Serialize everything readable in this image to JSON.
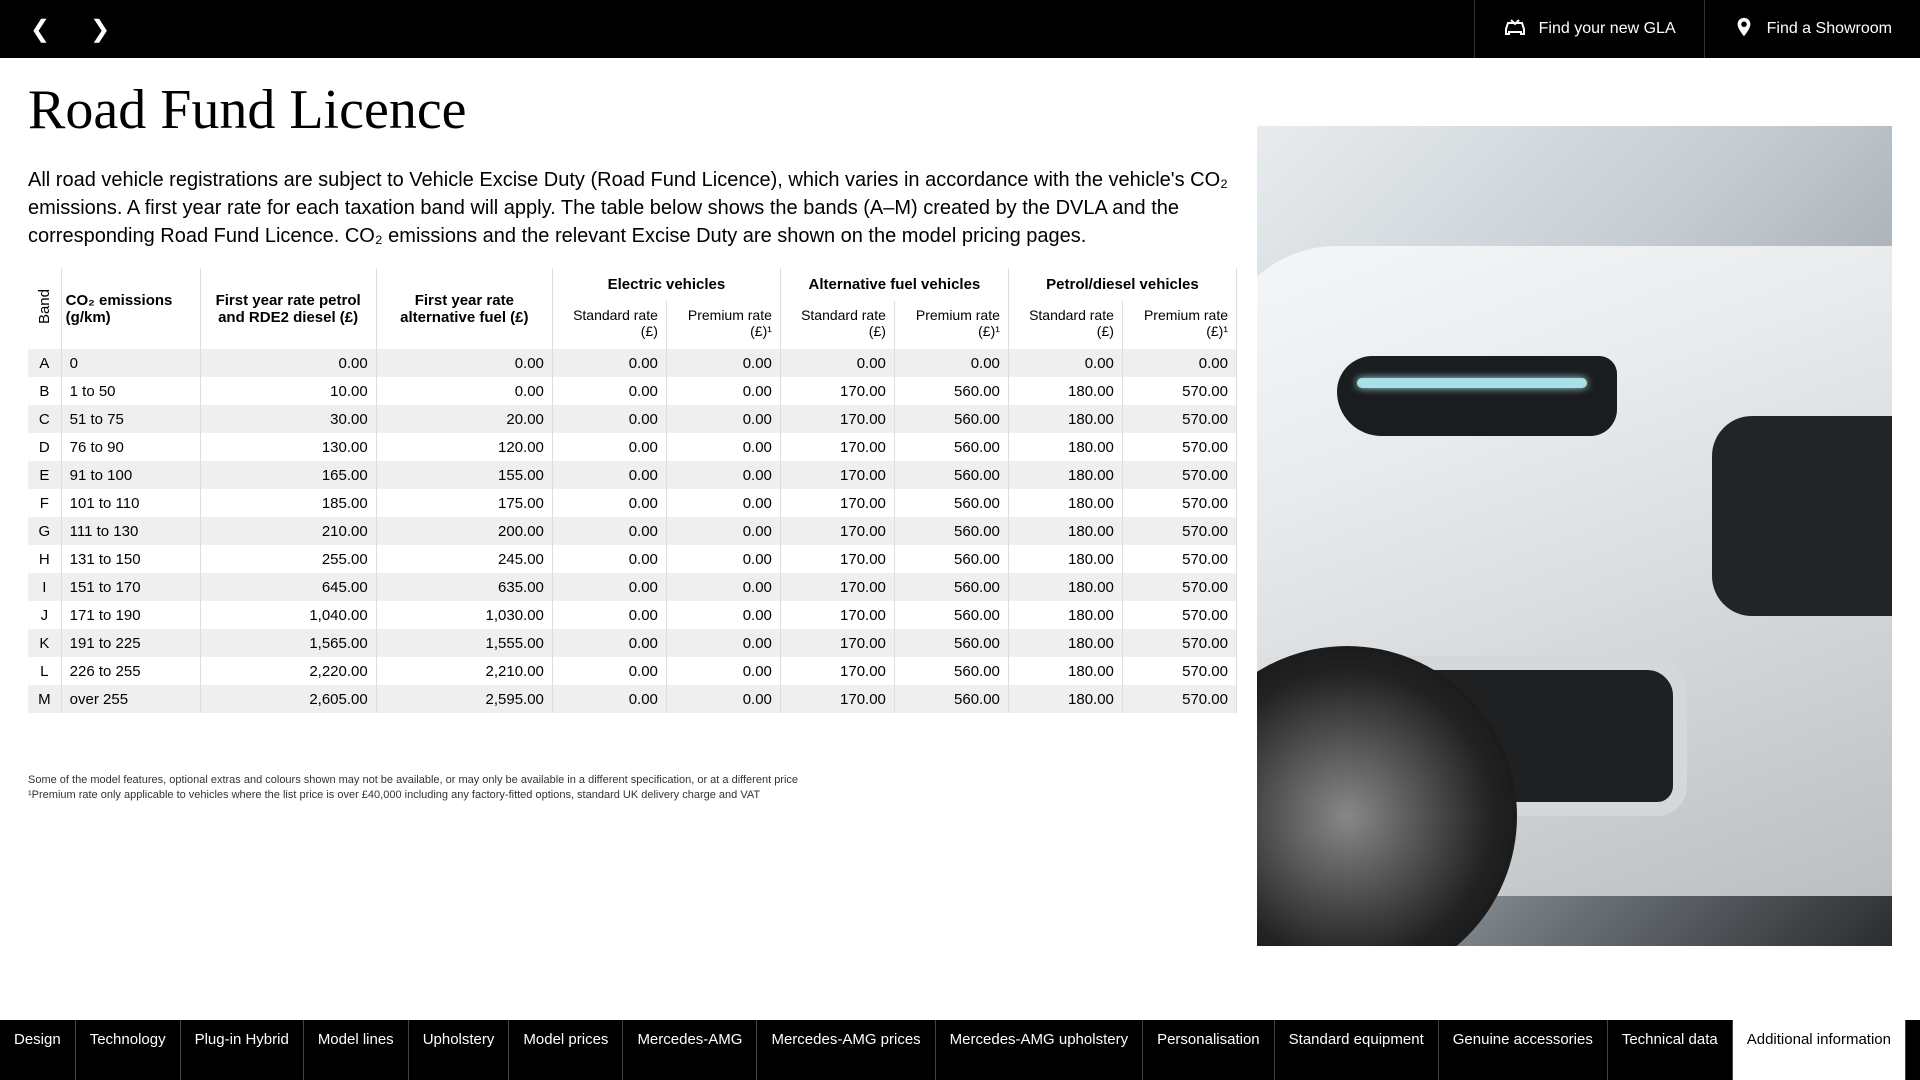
{
  "topbar": {
    "find_car": "Find your new GLA",
    "find_showroom": "Find a Showroom"
  },
  "title": "Road Fund Licence",
  "intro": "All road vehicle registrations are subject to Vehicle Excise Duty (Road Fund Licence), which varies in accordance with the vehicle's CO₂ emissions. A first year rate for each taxation band will apply. The table below shows the bands (A–M) created by the DVLA and the corresponding Road Fund Licence. CO₂ emissions and the relevant Excise Duty are shown on the model pricing pages.",
  "table": {
    "group_headers": {
      "electric": "Electric vehicles",
      "alternative": "Alternative fuel vehicles",
      "petrol": "Petrol/diesel vehicles"
    },
    "columns": {
      "band": "Band",
      "emissions": "CO₂ emissions (g/km)",
      "first_petrol": "First year rate petrol and RDE2 diesel (£)",
      "first_alt": "First year rate alternative fuel (£)",
      "standard": "Standard rate (£)",
      "premium": "Premium rate (£)¹"
    },
    "rows": [
      {
        "band": "A",
        "em": "0",
        "fp": "0.00",
        "fa": "0.00",
        "es": "0.00",
        "ep": "0.00",
        "as": "0.00",
        "ap": "0.00",
        "ps": "0.00",
        "pp": "0.00"
      },
      {
        "band": "B",
        "em": "1 to 50",
        "fp": "10.00",
        "fa": "0.00",
        "es": "0.00",
        "ep": "0.00",
        "as": "170.00",
        "ap": "560.00",
        "ps": "180.00",
        "pp": "570.00"
      },
      {
        "band": "C",
        "em": "51 to 75",
        "fp": "30.00",
        "fa": "20.00",
        "es": "0.00",
        "ep": "0.00",
        "as": "170.00",
        "ap": "560.00",
        "ps": "180.00",
        "pp": "570.00"
      },
      {
        "band": "D",
        "em": "76 to 90",
        "fp": "130.00",
        "fa": "120.00",
        "es": "0.00",
        "ep": "0.00",
        "as": "170.00",
        "ap": "560.00",
        "ps": "180.00",
        "pp": "570.00"
      },
      {
        "band": "E",
        "em": "91 to 100",
        "fp": "165.00",
        "fa": "155.00",
        "es": "0.00",
        "ep": "0.00",
        "as": "170.00",
        "ap": "560.00",
        "ps": "180.00",
        "pp": "570.00"
      },
      {
        "band": "F",
        "em": "101 to 110",
        "fp": "185.00",
        "fa": "175.00",
        "es": "0.00",
        "ep": "0.00",
        "as": "170.00",
        "ap": "560.00",
        "ps": "180.00",
        "pp": "570.00"
      },
      {
        "band": "G",
        "em": "111 to 130",
        "fp": "210.00",
        "fa": "200.00",
        "es": "0.00",
        "ep": "0.00",
        "as": "170.00",
        "ap": "560.00",
        "ps": "180.00",
        "pp": "570.00"
      },
      {
        "band": "H",
        "em": "131 to 150",
        "fp": "255.00",
        "fa": "245.00",
        "es": "0.00",
        "ep": "0.00",
        "as": "170.00",
        "ap": "560.00",
        "ps": "180.00",
        "pp": "570.00"
      },
      {
        "band": "I",
        "em": "151 to 170",
        "fp": "645.00",
        "fa": "635.00",
        "es": "0.00",
        "ep": "0.00",
        "as": "170.00",
        "ap": "560.00",
        "ps": "180.00",
        "pp": "570.00"
      },
      {
        "band": "J",
        "em": "171 to 190",
        "fp": "1,040.00",
        "fa": "1,030.00",
        "es": "0.00",
        "ep": "0.00",
        "as": "170.00",
        "ap": "560.00",
        "ps": "180.00",
        "pp": "570.00"
      },
      {
        "band": "K",
        "em": "191 to 225",
        "fp": "1,565.00",
        "fa": "1,555.00",
        "es": "0.00",
        "ep": "0.00",
        "as": "170.00",
        "ap": "560.00",
        "ps": "180.00",
        "pp": "570.00"
      },
      {
        "band": "L",
        "em": "226 to 255",
        "fp": "2,220.00",
        "fa": "2,210.00",
        "es": "0.00",
        "ep": "0.00",
        "as": "170.00",
        "ap": "560.00",
        "ps": "180.00",
        "pp": "570.00"
      },
      {
        "band": "M",
        "em": "over 255",
        "fp": "2,605.00",
        "fa": "2,595.00",
        "es": "0.00",
        "ep": "0.00",
        "as": "170.00",
        "ap": "560.00",
        "ps": "180.00",
        "pp": "570.00"
      }
    ]
  },
  "footnotes": {
    "line1": "Some of the model features, optional extras and colours shown may not be available, or may only be available in a different specification, or at a different price",
    "line2": "¹Premium rate only applicable to vehicles where the list price is over £40,000 including any factory-fitted options, standard UK delivery charge and VAT"
  },
  "tabs": [
    "Design",
    "Technology",
    "Plug-in Hybrid",
    "Model lines",
    "Upholstery",
    "Model prices",
    "Mercedes-AMG",
    "Mercedes-AMG prices",
    "Mercedes-AMG upholstery",
    "Personalisation",
    "Standard equipment",
    "Genuine accessories",
    "Technical data",
    "Additional information"
  ],
  "active_tab": 13
}
